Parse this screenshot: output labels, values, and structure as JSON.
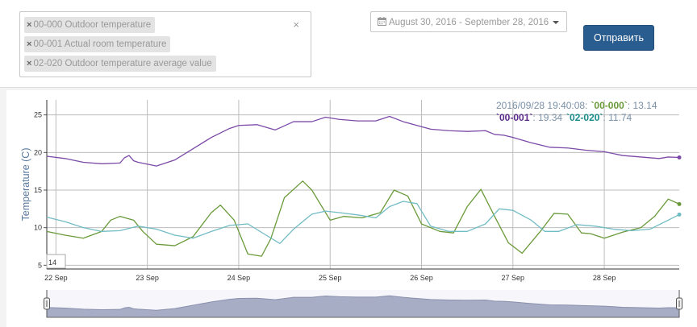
{
  "filter": {
    "tags": [
      {
        "label": "00-000 Outdoor temperature"
      },
      {
        "label": "00-001 Actual room temperature"
      },
      {
        "label": "02-020 Outdoor temperature average value"
      }
    ],
    "remove_glyph": "×",
    "clear_glyph": "×"
  },
  "date_range": {
    "label": "August 30, 2016 - September 28, 2016",
    "icon": "calendar-icon"
  },
  "submit": {
    "label": "Отправить"
  },
  "colors": {
    "series_00_000": "#6a9a3a",
    "series_00_001": "#7b4aa8",
    "series_02_020": "#72bcc4",
    "accent_button": "#2a5d8f"
  },
  "legend": {
    "timestamp": "2016/09/28 19:40:08:",
    "s1_key": "`00-000`",
    "s1_val": ": 13.14",
    "s2_key": "`00-001`",
    "s2_val": ": 19.34",
    "s3_key": "`02-020`",
    "s3_val": ": 11.74"
  },
  "roll_period": "14",
  "chart_data": {
    "type": "line",
    "ylabel": "Temperature (C)",
    "xlabel": "",
    "ylim": [
      4.5,
      27
    ],
    "yticks": [
      5,
      10,
      15,
      20,
      25
    ],
    "xlim_days": [
      21.9,
      28.82
    ],
    "x_tick_labels": [
      "22 Sep",
      "23 Sep",
      "24 Sep",
      "25 Sep",
      "26 Sep",
      "27 Sep",
      "28 Sep"
    ],
    "x_tick_days": [
      22,
      23,
      24,
      25,
      26,
      27,
      28
    ],
    "grid": true,
    "series": [
      {
        "name": "00-001",
        "x_days": [
          21.9,
          22.1,
          22.3,
          22.5,
          22.7,
          22.75,
          22.8,
          22.85,
          22.9,
          23.1,
          23.3,
          23.5,
          23.7,
          23.9,
          24.0,
          24.2,
          24.4,
          24.6,
          24.8,
          24.95,
          25.1,
          25.3,
          25.5,
          25.65,
          25.8,
          25.95,
          26.1,
          26.3,
          26.5,
          26.7,
          26.8,
          26.9,
          27.0,
          27.2,
          27.4,
          27.6,
          27.8,
          28.0,
          28.2,
          28.4,
          28.6,
          28.7,
          28.82
        ],
        "values": [
          19.5,
          19.2,
          18.7,
          18.5,
          18.6,
          19.3,
          19.6,
          18.9,
          18.7,
          18.2,
          19.0,
          20.5,
          22.0,
          23.2,
          23.6,
          23.7,
          23.0,
          24.1,
          24.1,
          24.7,
          24.4,
          24.2,
          24.2,
          24.8,
          24.1,
          23.6,
          23.1,
          22.9,
          22.8,
          22.9,
          22.4,
          22.3,
          22.0,
          21.3,
          20.7,
          20.6,
          20.3,
          20.1,
          19.6,
          19.4,
          19.2,
          19.4,
          19.34
        ]
      },
      {
        "name": "00-000",
        "x_days": [
          21.9,
          22.1,
          22.3,
          22.5,
          22.6,
          22.7,
          22.85,
          22.95,
          23.1,
          23.3,
          23.5,
          23.7,
          23.8,
          23.95,
          24.1,
          24.25,
          24.35,
          24.5,
          24.7,
          24.8,
          25.0,
          25.15,
          25.35,
          25.55,
          25.7,
          25.85,
          26.0,
          26.2,
          26.35,
          26.5,
          26.65,
          26.8,
          26.95,
          27.1,
          27.3,
          27.45,
          27.6,
          27.75,
          27.85,
          28.0,
          28.2,
          28.4,
          28.55,
          28.7,
          28.82
        ],
        "values": [
          9.5,
          9.0,
          8.6,
          9.5,
          11.0,
          11.5,
          11.0,
          9.5,
          7.8,
          7.6,
          8.8,
          12.0,
          13.0,
          11.0,
          6.5,
          6.2,
          8.5,
          14.0,
          16.2,
          15.0,
          11.0,
          11.5,
          11.3,
          12.0,
          15.0,
          14.2,
          10.5,
          9.5,
          9.3,
          12.8,
          15.1,
          11.5,
          8.0,
          6.6,
          9.5,
          11.9,
          11.8,
          9.3,
          9.2,
          8.6,
          9.4,
          10.0,
          11.5,
          13.8,
          13.14
        ]
      },
      {
        "name": "02-020",
        "x_days": [
          21.9,
          22.1,
          22.3,
          22.5,
          22.7,
          22.9,
          23.1,
          23.3,
          23.5,
          23.7,
          23.9,
          24.1,
          24.3,
          24.45,
          24.6,
          24.8,
          24.95,
          25.1,
          25.3,
          25.5,
          25.65,
          25.8,
          25.95,
          26.1,
          26.3,
          26.5,
          26.7,
          26.85,
          27.0,
          27.2,
          27.35,
          27.5,
          27.7,
          27.9,
          28.1,
          28.3,
          28.5,
          28.7,
          28.82
        ],
        "values": [
          11.4,
          10.8,
          10.0,
          9.5,
          9.6,
          10.2,
          9.8,
          9.0,
          8.6,
          9.5,
          10.3,
          10.5,
          9.0,
          7.9,
          9.8,
          11.8,
          12.2,
          12.0,
          11.7,
          11.3,
          12.8,
          13.5,
          13.2,
          10.2,
          9.5,
          9.5,
          10.5,
          12.5,
          12.3,
          11.0,
          9.5,
          9.5,
          10.4,
          10.2,
          9.8,
          9.6,
          9.8,
          11.0,
          11.74
        ]
      }
    ]
  }
}
